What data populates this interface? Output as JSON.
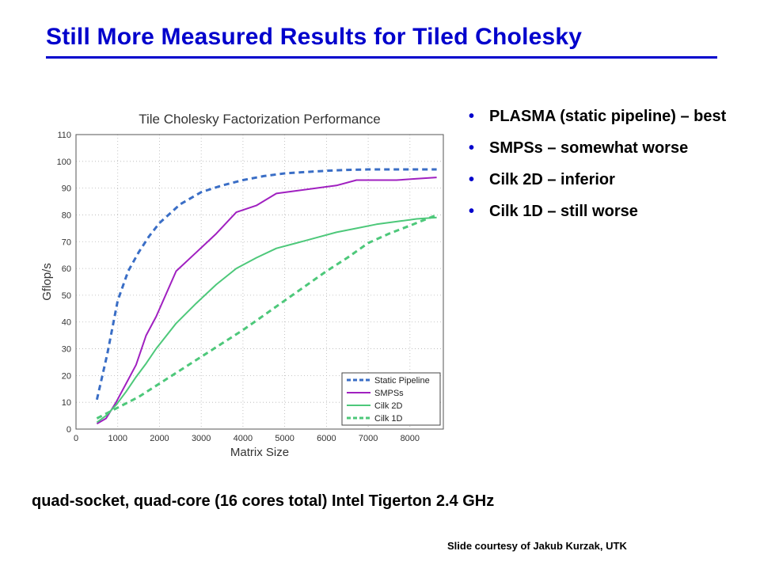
{
  "slide": {
    "title": "Still More Measured Results for Tiled Cholesky",
    "bullets": [
      "PLASMA (static pipeline) – best",
      "SMPSs – somewhat worse",
      "Cilk 2D – inferior",
      "Cilk 1D – still worse"
    ],
    "footnote": "quad-socket, quad-core (16 cores total) Intel Tigerton 2.4 GHz",
    "credit": "Slide courtesy of Jakub Kurzak, UTK",
    "accent_color": "#0000cc"
  },
  "chart_data": {
    "type": "line",
    "title": "Tile Cholesky Factorization Performance",
    "xlabel": "Matrix Size",
    "ylabel": "Gflop/s",
    "xlim": [
      0,
      8800
    ],
    "ylim": [
      0,
      110
    ],
    "xticks": [
      0,
      1000,
      2000,
      3000,
      4000,
      5000,
      6000,
      7000,
      8000
    ],
    "yticks": [
      0,
      10,
      20,
      30,
      40,
      50,
      60,
      70,
      80,
      90,
      100,
      110
    ],
    "grid": true,
    "legend_position": "bottom-right",
    "series": [
      {
        "name": "Static Pipeline",
        "color": "#3a6ec6",
        "style": "dashed",
        "x": [
          500,
          750,
          1000,
          1250,
          1500,
          1750,
          2000,
          2500,
          3000,
          3500,
          4000,
          4500,
          5000,
          5500,
          6000,
          6500,
          7000,
          7500,
          8000,
          8640
        ],
        "y": [
          11,
          28,
          48,
          59,
          66,
          72,
          77,
          84,
          88.5,
          91,
          93,
          94.5,
          95.5,
          96,
          96.5,
          96.8,
          97,
          97,
          97,
          97
        ]
      },
      {
        "name": "SMPSs",
        "color": "#a020c0",
        "style": "solid",
        "x": [
          500,
          720,
          960,
          1200,
          1440,
          1680,
          1920,
          2400,
          2880,
          3360,
          3840,
          4320,
          4800,
          5280,
          5760,
          6240,
          6720,
          7200,
          7680,
          8160,
          8640
        ],
        "y": [
          2,
          4,
          10,
          17,
          24,
          35,
          42,
          59,
          66,
          73,
          81,
          83.5,
          88,
          89,
          90,
          91,
          93,
          93,
          93,
          93.5,
          94
        ]
      },
      {
        "name": "Cilk 2D",
        "color": "#4dc87a",
        "style": "solid",
        "x": [
          500,
          720,
          960,
          1200,
          1440,
          1680,
          1920,
          2400,
          2880,
          3360,
          3840,
          4320,
          4800,
          5280,
          5760,
          6240,
          6720,
          7200,
          7680,
          8160,
          8640
        ],
        "y": [
          2.5,
          5,
          9,
          14,
          19.5,
          24.5,
          30,
          39.5,
          47,
          54,
          60,
          64,
          67.5,
          69.5,
          71.5,
          73.5,
          75,
          76.5,
          77.5,
          78.5,
          79
        ]
      },
      {
        "name": "Cilk 1D",
        "color": "#4dc87a",
        "style": "dashed",
        "x": [
          500,
          1000,
          1500,
          2000,
          2500,
          3000,
          3500,
          4000,
          4500,
          5000,
          5500,
          6000,
          6500,
          7000,
          7500,
          8000,
          8640
        ],
        "y": [
          4,
          8,
          12,
          17,
          22,
          27,
          32,
          37,
          42.5,
          48,
          53.5,
          59,
          64,
          69.5,
          73,
          76,
          80
        ]
      }
    ]
  }
}
